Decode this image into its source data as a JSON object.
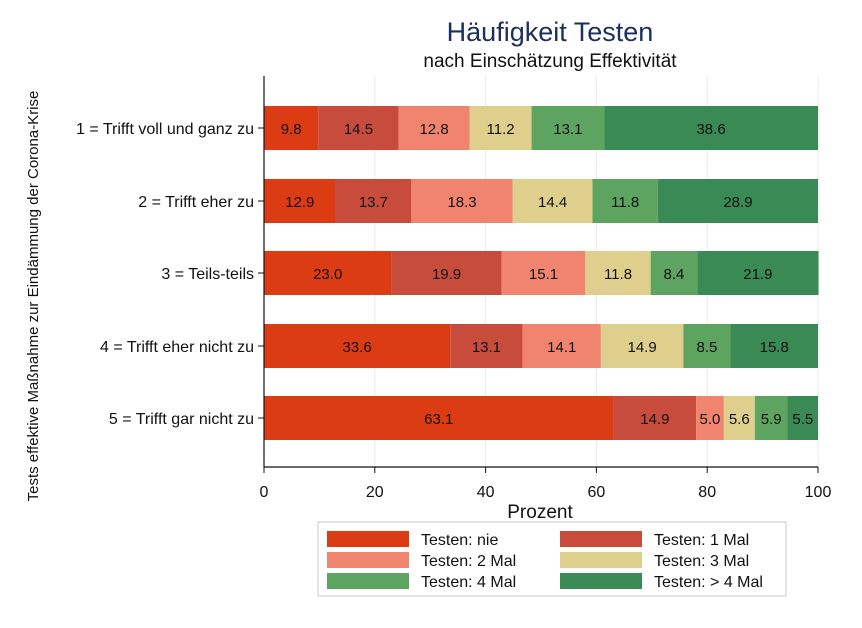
{
  "chart_data": {
    "type": "bar",
    "orientation": "horizontal",
    "stacked": true,
    "title": "Häufigkeit Testen",
    "subtitle": "nach Einschätzung Effektivität",
    "xlabel": "Prozent",
    "ylabel": "Tests effektive Maßnahme zur Eindämmung der Corona-Krise",
    "xlim": [
      0,
      100
    ],
    "xticks": [
      0,
      20,
      40,
      60,
      80,
      100
    ],
    "grid": true,
    "legend_position": "bottom",
    "categories": [
      "1 = Trifft voll und ganz zu",
      "2 = Trifft eher zu",
      "3 = Teils-teils",
      "4 = Trifft eher nicht zu",
      "5 = Trifft gar nicht zu"
    ],
    "series": [
      {
        "name": "Testen: nie",
        "color": "#dc3c14",
        "values": [
          9.8,
          12.9,
          23.0,
          33.6,
          63.1
        ]
      },
      {
        "name": "Testen: 1 Mal",
        "color": "#c84c3c",
        "values": [
          14.5,
          13.7,
          19.9,
          13.1,
          14.9
        ]
      },
      {
        "name": "Testen: 2 Mal",
        "color": "#f0846f",
        "values": [
          12.8,
          18.3,
          15.1,
          14.1,
          5.0
        ]
      },
      {
        "name": "Testen: 3 Mal",
        "color": "#dfcf8c",
        "values": [
          11.2,
          14.4,
          11.8,
          14.9,
          5.6
        ]
      },
      {
        "name": "Testen: 4 Mal",
        "color": "#5ca45f",
        "values": [
          13.1,
          11.8,
          8.4,
          8.5,
          5.9
        ]
      },
      {
        "name": "Testen: > 4 Mal",
        "color": "#3a8a55",
        "values": [
          38.6,
          28.9,
          21.9,
          15.8,
          5.5
        ]
      }
    ]
  }
}
